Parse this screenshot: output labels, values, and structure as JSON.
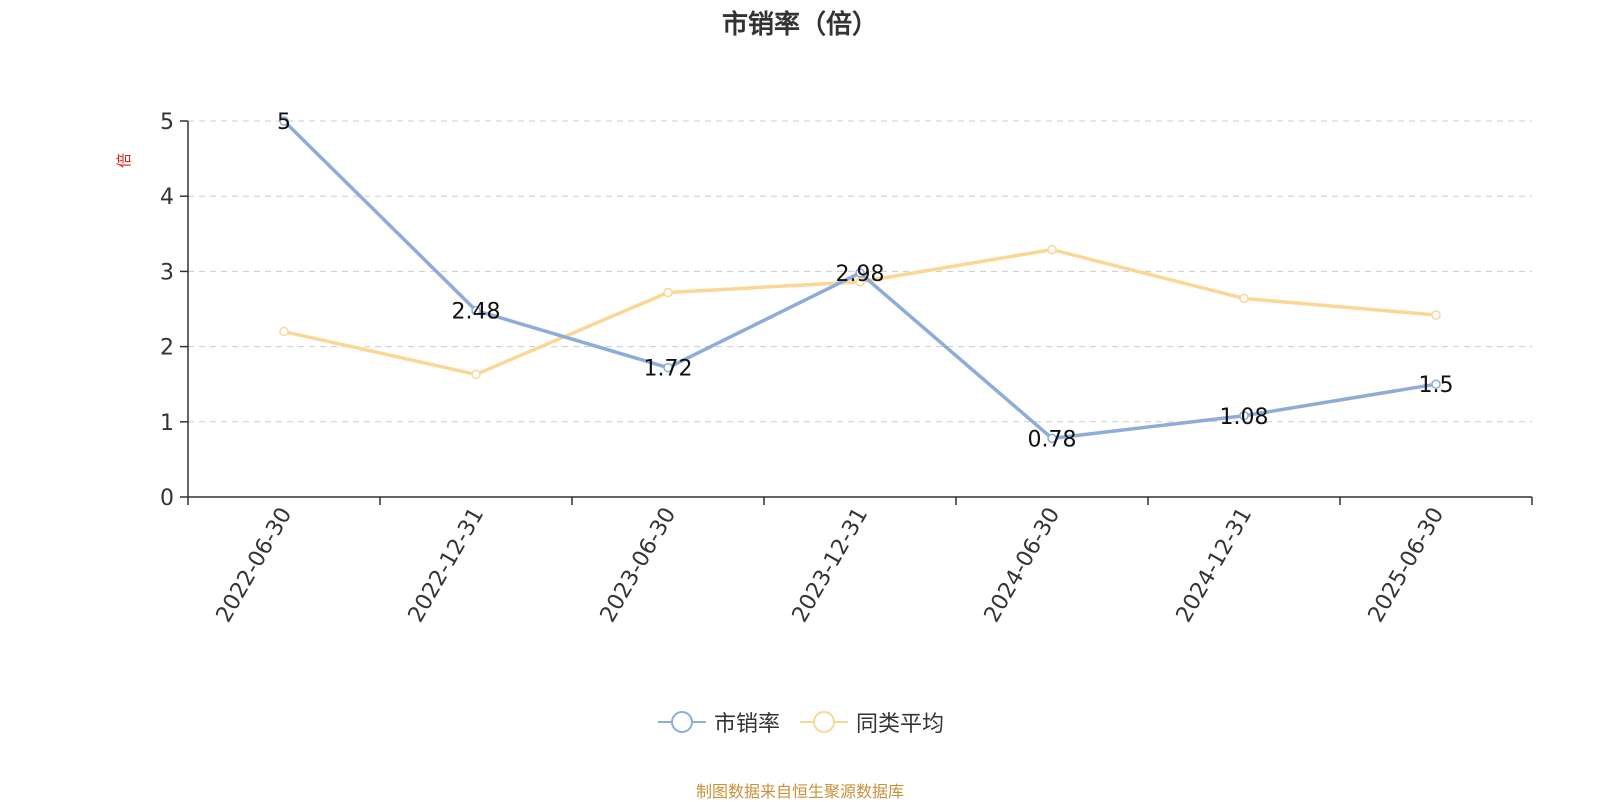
{
  "chart_data": {
    "type": "line",
    "title": "市销率（倍）",
    "ylabel": "倍",
    "xlabel": "",
    "x": [
      "2022-06-30",
      "2022-12-31",
      "2023-06-30",
      "2023-12-31",
      "2024-06-30",
      "2024-12-31",
      "2025-06-30"
    ],
    "yticks": [
      "0",
      "1",
      "2",
      "3",
      "4",
      "5"
    ],
    "ylim": [
      0,
      5
    ],
    "grid": "horizontal dashed",
    "legend_position": "bottom-center",
    "series": [
      {
        "name": "市销率",
        "values": [
          5,
          2.48,
          1.72,
          2.98,
          0.78,
          1.08,
          1.5
        ],
        "labels": [
          "5",
          "2.48",
          "1.72",
          "2.98",
          "0.78",
          "1.08",
          "1.5"
        ],
        "color": "#8eacd8"
      },
      {
        "name": "同类平均",
        "values": [
          2.2,
          1.63,
          2.72,
          2.86,
          3.29,
          2.64,
          2.42
        ],
        "color": "#fbd796"
      }
    ],
    "source": "制图数据来自恒生聚源数据库"
  }
}
